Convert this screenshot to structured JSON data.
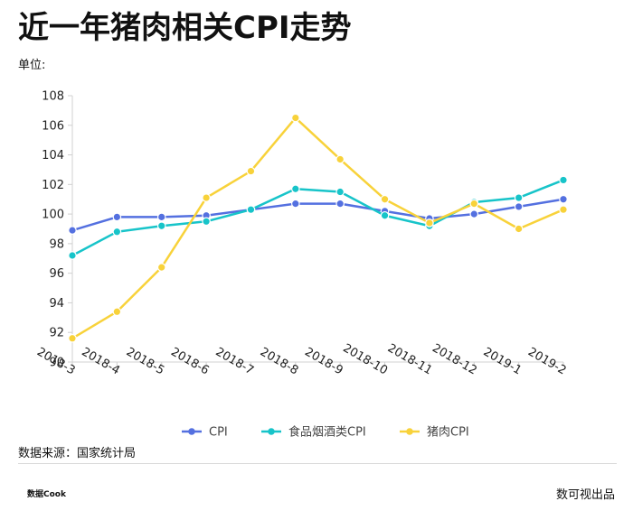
{
  "page": {
    "title": "近一年猪肉相关CPI走势",
    "unit_label": "单位:",
    "source": "数据来源：国家统计局",
    "logo": "数据Cook",
    "brand": "数可视出品"
  },
  "chart_data": {
    "type": "line",
    "title": "近一年猪肉相关CPI走势",
    "ylabel": "单位:",
    "xlabel": "",
    "ylim": [
      90,
      108
    ],
    "yticks": [
      90,
      92,
      94,
      96,
      98,
      100,
      102,
      104,
      106,
      108
    ],
    "categories": [
      "2018-3",
      "2018-4",
      "2018-5",
      "2018-6",
      "2018-7",
      "2018-8",
      "2018-9",
      "2018-10",
      "2018-11",
      "2018-12",
      "2019-1",
      "2019-2"
    ],
    "grid": false,
    "legend_position": "bottom",
    "series": [
      {
        "name": "CPI",
        "color": "#5470e0",
        "values": [
          98.9,
          99.8,
          99.8,
          99.9,
          100.3,
          100.7,
          100.7,
          100.2,
          99.7,
          100.0,
          100.5,
          101.0
        ]
      },
      {
        "name": "食品烟酒类CPI",
        "color": "#17c4c9",
        "values": [
          97.2,
          98.8,
          99.2,
          99.5,
          100.3,
          101.7,
          101.5,
          99.9,
          99.2,
          100.8,
          101.1,
          102.3
        ]
      },
      {
        "name": "猪肉CPI",
        "color": "#f8d23a",
        "values": [
          91.6,
          93.4,
          96.4,
          101.1,
          102.9,
          106.5,
          103.7,
          101.0,
          99.4,
          100.7,
          99.0,
          100.3
        ]
      }
    ]
  }
}
